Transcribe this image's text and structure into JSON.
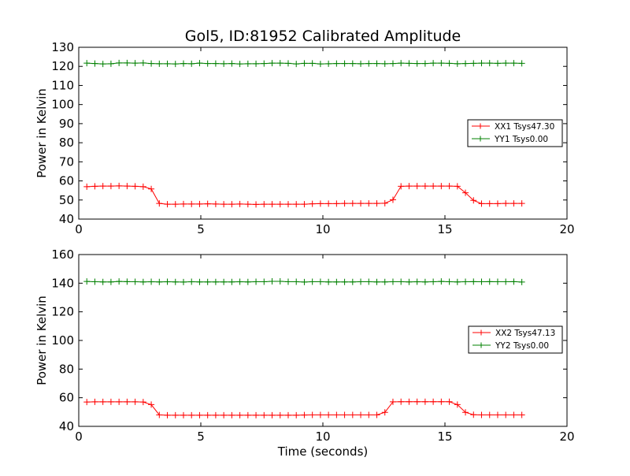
{
  "title": "Gol5, ID:81952 Calibrated Amplitude",
  "colors": {
    "xx": "#ff0000",
    "yy": "#008000"
  },
  "chart_data": [
    {
      "type": "line",
      "ylabel": "Power in Kelvin",
      "xlabel": "",
      "xlim": [
        0,
        20
      ],
      "ylim": [
        40,
        130
      ],
      "xticks": [
        0,
        5,
        10,
        15,
        20
      ],
      "yticks": [
        40,
        50,
        60,
        70,
        80,
        90,
        100,
        110,
        120,
        130
      ],
      "legend_position": "right",
      "x": [
        0.33,
        0.66,
        0.99,
        1.32,
        1.65,
        1.98,
        2.31,
        2.64,
        2.97,
        3.3,
        3.63,
        3.96,
        4.29,
        4.62,
        4.95,
        5.28,
        5.61,
        5.94,
        6.27,
        6.6,
        6.93,
        7.26,
        7.59,
        7.92,
        8.25,
        8.58,
        8.91,
        9.24,
        9.57,
        9.9,
        10.23,
        10.56,
        10.89,
        11.22,
        11.55,
        11.88,
        12.21,
        12.54,
        12.87,
        13.2,
        13.53,
        13.86,
        14.19,
        14.52,
        14.85,
        15.18,
        15.51,
        15.84,
        16.17,
        16.5,
        16.83,
        17.16,
        17.49,
        17.82,
        18.15
      ],
      "series": [
        {
          "name": "XX1 Tsys47.30",
          "color_key": "xx",
          "values": [
            57.0,
            57.2,
            57.3,
            57.3,
            57.4,
            57.3,
            57.2,
            57.0,
            55.8,
            48.2,
            47.8,
            47.8,
            47.9,
            47.9,
            47.9,
            48.0,
            47.9,
            47.8,
            47.8,
            47.9,
            47.8,
            47.7,
            47.8,
            47.8,
            47.8,
            47.8,
            47.8,
            47.8,
            48.0,
            48.1,
            48.1,
            48.1,
            48.2,
            48.2,
            48.2,
            48.2,
            48.2,
            48.3,
            50.1,
            57.2,
            57.3,
            57.3,
            57.3,
            57.3,
            57.3,
            57.3,
            57.2,
            53.8,
            49.8,
            48.1,
            48.1,
            48.1,
            48.2,
            48.2,
            48.2
          ]
        },
        {
          "name": "YY1 Tsys0.00",
          "color_key": "yy",
          "values": [
            121.7,
            121.5,
            121.3,
            121.4,
            121.8,
            121.8,
            121.7,
            121.8,
            121.5,
            121.4,
            121.4,
            121.3,
            121.5,
            121.4,
            121.7,
            121.5,
            121.5,
            121.4,
            121.5,
            121.3,
            121.4,
            121.4,
            121.5,
            121.7,
            121.7,
            121.6,
            121.3,
            121.6,
            121.6,
            121.3,
            121.4,
            121.5,
            121.5,
            121.5,
            121.4,
            121.5,
            121.5,
            121.4,
            121.5,
            121.7,
            121.6,
            121.5,
            121.5,
            121.7,
            121.7,
            121.6,
            121.4,
            121.5,
            121.6,
            121.7,
            121.7,
            121.6,
            121.7,
            121.7,
            121.6
          ]
        }
      ]
    },
    {
      "type": "line",
      "ylabel": "Power in Kelvin",
      "xlabel": "Time (seconds)",
      "xlim": [
        0,
        20
      ],
      "ylim": [
        40,
        160
      ],
      "xticks": [
        0,
        5,
        10,
        15,
        20
      ],
      "yticks": [
        40,
        60,
        80,
        100,
        120,
        140,
        160
      ],
      "legend_position": "right",
      "x": [
        0.33,
        0.66,
        0.99,
        1.32,
        1.65,
        1.98,
        2.31,
        2.64,
        2.97,
        3.3,
        3.63,
        3.96,
        4.29,
        4.62,
        4.95,
        5.28,
        5.61,
        5.94,
        6.27,
        6.6,
        6.93,
        7.26,
        7.59,
        7.92,
        8.25,
        8.58,
        8.91,
        9.24,
        9.57,
        9.9,
        10.23,
        10.56,
        10.89,
        11.22,
        11.55,
        11.88,
        12.21,
        12.54,
        12.87,
        13.2,
        13.53,
        13.86,
        14.19,
        14.52,
        14.85,
        15.18,
        15.51,
        15.84,
        16.17,
        16.5,
        16.83,
        17.16,
        17.49,
        17.82,
        18.15
      ],
      "series": [
        {
          "name": "XX2 Tsys47.13",
          "color_key": "xx",
          "values": [
            57.0,
            57.1,
            57.1,
            57.1,
            57.1,
            57.1,
            57.1,
            57.0,
            55.2,
            48.0,
            47.8,
            47.8,
            47.8,
            47.8,
            47.8,
            47.8,
            47.8,
            47.8,
            47.8,
            47.8,
            47.8,
            47.8,
            47.8,
            47.8,
            47.8,
            47.8,
            47.8,
            47.9,
            48.0,
            48.0,
            48.0,
            48.0,
            48.0,
            48.0,
            48.0,
            48.0,
            48.0,
            49.8,
            57.1,
            57.2,
            57.2,
            57.2,
            57.2,
            57.2,
            57.2,
            57.2,
            55.2,
            49.8,
            48.1,
            48.0,
            48.0,
            48.0,
            48.0,
            48.0,
            48.0
          ]
        },
        {
          "name": "YY2 Tsys0.00",
          "color_key": "yy",
          "values": [
            141.2,
            141.0,
            140.9,
            140.9,
            141.2,
            141.1,
            141.0,
            140.9,
            141.0,
            140.9,
            141.0,
            140.9,
            140.8,
            141.0,
            140.9,
            140.9,
            140.9,
            140.9,
            140.9,
            141.0,
            140.9,
            141.0,
            141.0,
            141.3,
            141.3,
            141.0,
            141.0,
            140.8,
            141.0,
            141.0,
            140.9,
            140.9,
            140.9,
            140.9,
            141.0,
            141.0,
            140.9,
            140.9,
            141.0,
            141.0,
            140.9,
            141.0,
            140.9,
            141.0,
            141.2,
            141.0,
            140.9,
            141.0,
            141.1,
            141.0,
            141.1,
            141.0,
            141.0,
            141.1,
            140.8
          ]
        }
      ]
    }
  ]
}
